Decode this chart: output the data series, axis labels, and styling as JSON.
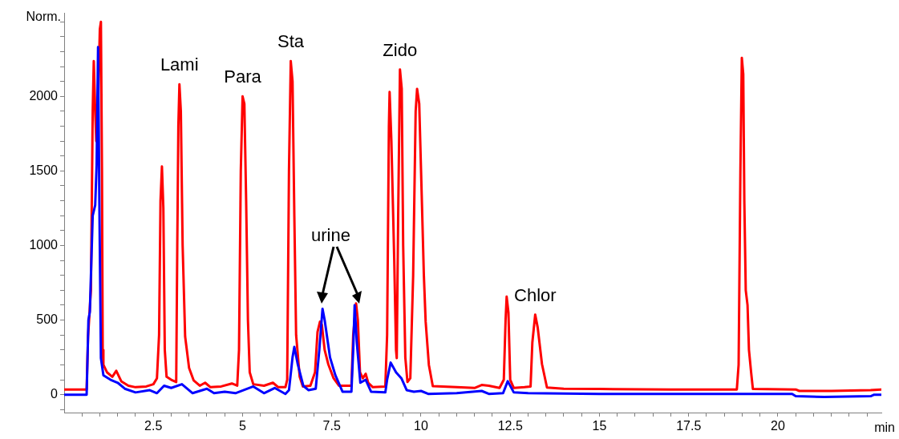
{
  "chart_data": {
    "type": "line",
    "xlabel": "min",
    "ylabel": "Norm.",
    "grid": false,
    "legend": false,
    "marker": "none",
    "line_style": "solid",
    "xlim": [
      0,
      22.9
    ],
    "ylim": [
      -120,
      2560
    ],
    "xticks": [
      {
        "value": 0.5,
        "label": null
      },
      {
        "value": 1,
        "label": null
      },
      {
        "value": 1.5,
        "label": null
      },
      {
        "value": 2,
        "label": null
      },
      2.5,
      {
        "value": 3,
        "label": null
      },
      {
        "value": 3.5,
        "label": null
      },
      {
        "value": 4,
        "label": null
      },
      {
        "value": 4.5,
        "label": null
      },
      5,
      {
        "value": 5.5,
        "label": null
      },
      {
        "value": 6,
        "label": null
      },
      {
        "value": 6.5,
        "label": null
      },
      {
        "value": 7,
        "label": null
      },
      7.5,
      {
        "value": 8,
        "label": null
      },
      {
        "value": 8.5,
        "label": null
      },
      {
        "value": 9,
        "label": null
      },
      {
        "value": 9.5,
        "label": null
      },
      10,
      {
        "value": 10.5,
        "label": null
      },
      {
        "value": 11,
        "label": null
      },
      {
        "value": 11.5,
        "label": null
      },
      {
        "value": 12,
        "label": null
      },
      12.5,
      {
        "value": 13,
        "label": null
      },
      {
        "value": 13.5,
        "label": null
      },
      {
        "value": 14,
        "label": null
      },
      {
        "value": 14.5,
        "label": null
      },
      15,
      {
        "value": 15.5,
        "label": null
      },
      {
        "value": 16,
        "label": null
      },
      {
        "value": 16.5,
        "label": null
      },
      {
        "value": 17,
        "label": null
      },
      17.5,
      {
        "value": 18,
        "label": null
      },
      {
        "value": 18.5,
        "label": null
      },
      {
        "value": 19,
        "label": null
      },
      {
        "value": 19.5,
        "label": null
      },
      20,
      {
        "value": 20.5,
        "label": null
      },
      {
        "value": 21,
        "label": null
      },
      {
        "value": 21.5,
        "label": null
      },
      {
        "value": 22,
        "label": null
      },
      {
        "value": 22.5,
        "label": null
      }
    ],
    "yticks": [
      {
        "value": -100,
        "label": null
      },
      0,
      {
        "value": 100,
        "label": null
      },
      {
        "value": 200,
        "label": null
      },
      {
        "value": 300,
        "label": null
      },
      {
        "value": 400,
        "label": null
      },
      500,
      {
        "value": 600,
        "label": null
      },
      {
        "value": 700,
        "label": null
      },
      {
        "value": 800,
        "label": null
      },
      {
        "value": 900,
        "label": null
      },
      1000,
      {
        "value": 1100,
        "label": null
      },
      {
        "value": 1200,
        "label": null
      },
      {
        "value": 1300,
        "label": null
      },
      {
        "value": 1400,
        "label": null
      },
      1500,
      {
        "value": 1600,
        "label": null
      },
      {
        "value": 1700,
        "label": null
      },
      {
        "value": 1800,
        "label": null
      },
      {
        "value": 1900,
        "label": null
      },
      2000,
      {
        "value": 2100,
        "label": null
      },
      {
        "value": 2200,
        "label": null
      },
      {
        "value": 2300,
        "label": null
      },
      {
        "value": 2400,
        "label": null
      },
      {
        "value": 2500,
        "label": null
      }
    ],
    "annotations": [
      {
        "text": "Lami",
        "x": 3.23,
        "y": 2080
      },
      {
        "text": "Para",
        "x": 5.0,
        "y": 2000
      },
      {
        "text": "Sta",
        "x": 6.35,
        "y": 2236
      },
      {
        "text": "Zido",
        "x": 9.41,
        "y": 2180
      },
      "urine",
      {
        "text": "Chlor",
        "x": 13.2,
        "y": 537
      }
    ],
    "series": [
      {
        "color": "#0000ff",
        "x": [
          0,
          0.63,
          0.68,
          0.72,
          0.8,
          0.87,
          0.91,
          0.95,
          0.99,
          1.03,
          1.1,
          1.3,
          1.5,
          1.7,
          2.0,
          2.4,
          2.6,
          2.8,
          3.0,
          3.3,
          3.6,
          4.0,
          4.2,
          4.5,
          4.8,
          5.3,
          5.6,
          5.9,
          6.2,
          6.3,
          6.4,
          6.45,
          6.55,
          6.7,
          6.85,
          7.05,
          7.15,
          7.24,
          7.3,
          7.45,
          7.6,
          7.8,
          8.05,
          8.1,
          8.14,
          8.2,
          8.3,
          8.45,
          8.6,
          9.0,
          9.05,
          9.15,
          9.3,
          9.45,
          9.6,
          9.8,
          10.0,
          10.2,
          11.0,
          11.7,
          11.9,
          12.3,
          12.43,
          12.6,
          13.0,
          15.0,
          20.4,
          20.5,
          21.3,
          22.6,
          22.7,
          22.9
        ],
        "values": [
          0,
          0,
          500,
          555,
          1200,
          1270,
          1540,
          2330,
          1200,
          245,
          130,
          100,
          80,
          40,
          15,
          30,
          10,
          60,
          45,
          70,
          10,
          40,
          10,
          20,
          10,
          55,
          10,
          45,
          5,
          30,
          250,
          320,
          200,
          60,
          30,
          40,
          300,
          575,
          500,
          250,
          130,
          20,
          20,
          300,
          600,
          350,
          80,
          100,
          20,
          15,
          100,
          215,
          150,
          110,
          30,
          20,
          25,
          5,
          10,
          25,
          5,
          10,
          90,
          15,
          10,
          5,
          5,
          -10,
          -15,
          -10,
          0,
          0
        ]
      },
      {
        "color": "#ff0000",
        "x": [
          0,
          0.63,
          0.67,
          0.75,
          0.8,
          0.83,
          0.87,
          0.9,
          0.95,
          1.0,
          1.03,
          1.06,
          1.08,
          1.1,
          1.2,
          1.35,
          1.46,
          1.6,
          1.8,
          2.0,
          2.3,
          2.5,
          2.6,
          2.66,
          2.7,
          2.74,
          2.78,
          2.82,
          2.87,
          3.0,
          3.14,
          3.17,
          3.2,
          3.23,
          3.27,
          3.32,
          3.39,
          3.5,
          3.63,
          3.8,
          3.95,
          4.1,
          4.4,
          4.7,
          4.85,
          4.9,
          4.95,
          5.0,
          5.05,
          5.1,
          5.15,
          5.2,
          5.3,
          5.6,
          5.85,
          6.0,
          6.2,
          6.25,
          6.3,
          6.35,
          6.4,
          6.45,
          6.5,
          6.6,
          6.69,
          6.9,
          7.03,
          7.1,
          7.17,
          7.22,
          7.3,
          7.4,
          7.55,
          7.7,
          8.05,
          8.1,
          8.18,
          8.23,
          8.29,
          8.37,
          8.45,
          8.52,
          8.65,
          9.0,
          9.05,
          9.1,
          9.12,
          9.17,
          9.25,
          9.3,
          9.32,
          9.36,
          9.41,
          9.46,
          9.5,
          9.56,
          9.62,
          9.7,
          9.78,
          9.85,
          9.89,
          9.95,
          10.02,
          10.08,
          10.13,
          10.22,
          10.33,
          11.0,
          11.5,
          11.7,
          11.9,
          12.2,
          12.32,
          12.37,
          12.4,
          12.45,
          12.5,
          12.6,
          12.9,
          13.07,
          13.12,
          13.2,
          13.27,
          13.39,
          13.53,
          14.0,
          15.0,
          17.0,
          18.85,
          18.9,
          18.95,
          18.99,
          19.03,
          19.06,
          19.1,
          19.15,
          19.19,
          19.25,
          19.3,
          20.5,
          20.6,
          21.5,
          22.6,
          22.9
        ],
        "values": [
          35,
          35,
          390,
          700,
          1900,
          2236,
          1900,
          1700,
          1950,
          2450,
          2500,
          1500,
          300,
          200,
          150,
          120,
          160,
          90,
          60,
          50,
          55,
          70,
          110,
          400,
          1300,
          1530,
          1250,
          300,
          120,
          100,
          85,
          1000,
          1800,
          2080,
          1900,
          1000,
          390,
          180,
          95,
          60,
          80,
          50,
          55,
          75,
          60,
          300,
          1500,
          2000,
          1950,
          1300,
          500,
          150,
          70,
          60,
          80,
          50,
          50,
          100,
          1500,
          2236,
          2100,
          1200,
          400,
          120,
          55,
          60,
          150,
          420,
          490,
          470,
          300,
          205,
          110,
          60,
          60,
          400,
          612,
          500,
          150,
          110,
          140,
          80,
          50,
          55,
          400,
          1800,
          2030,
          1700,
          900,
          300,
          245,
          1200,
          2180,
          2050,
          1000,
          250,
          85,
          110,
          800,
          1900,
          2050,
          1950,
          1335,
          800,
          490,
          200,
          57,
          50,
          45,
          65,
          60,
          45,
          100,
          500,
          657,
          550,
          100,
          45,
          50,
          55,
          350,
          537,
          450,
          205,
          48,
          40,
          38,
          35,
          35,
          200,
          1500,
          2258,
          2150,
          1300,
          700,
          600,
          300,
          150,
          38,
          35,
          25,
          25,
          30,
          35
        ]
      }
    ]
  }
}
